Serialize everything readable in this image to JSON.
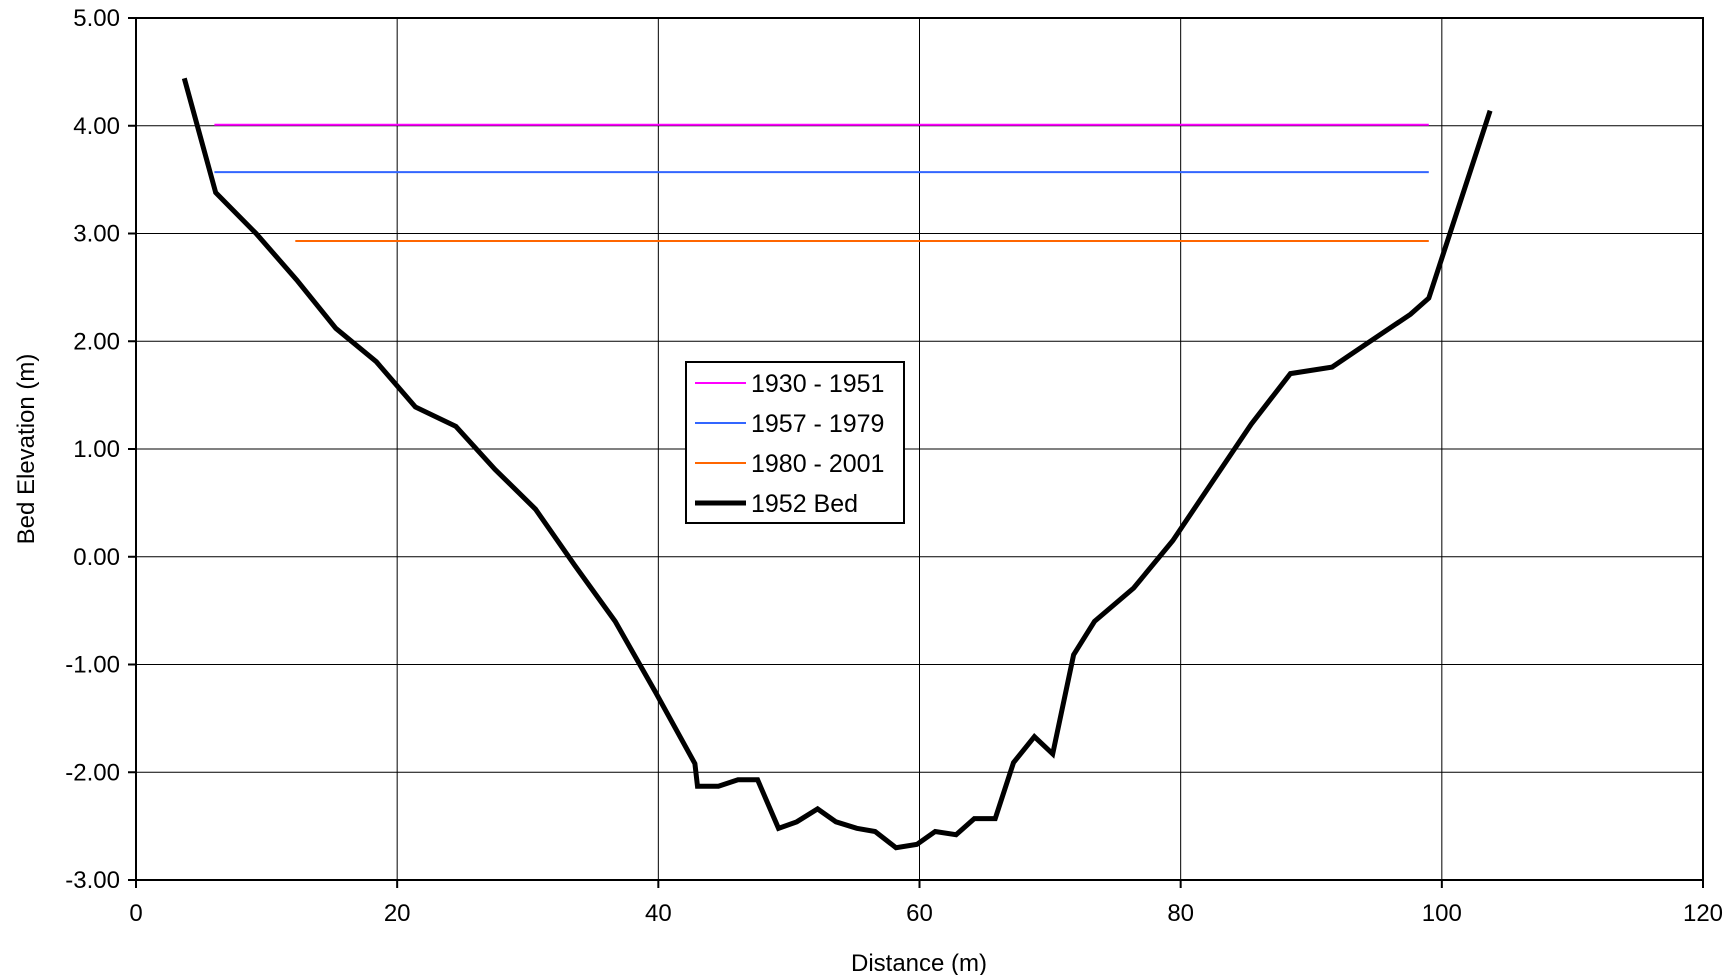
{
  "chart_data": {
    "type": "line",
    "title": "",
    "xlabel": "Distance (m)",
    "ylabel": "Bed Elevation (m)",
    "xlim": [
      0,
      120
    ],
    "ylim": [
      -3,
      5
    ],
    "grid": true,
    "legend_position": "center",
    "x_ticks": [
      "0",
      "20",
      "40",
      "60",
      "80",
      "100",
      "120"
    ],
    "y_ticks": [
      "-3.00",
      "-2.00",
      "-1.00",
      "0.00",
      "1.00",
      "2.00",
      "3.00",
      "4.00",
      "5.00"
    ],
    "series": [
      {
        "name": "1930 - 1951",
        "color": "#ff00ff",
        "width": "thin",
        "x": [
          6.0,
          99.0
        ],
        "y": [
          4.01,
          4.01
        ]
      },
      {
        "name": "1957 - 1979",
        "color": "#3366ff",
        "width": "thin",
        "x": [
          6.0,
          99.0
        ],
        "y": [
          3.57,
          3.57
        ]
      },
      {
        "name": "1980 - 2001",
        "color": "#ff6600",
        "width": "thin",
        "x": [
          12.2,
          99.0
        ],
        "y": [
          2.93,
          2.93
        ]
      },
      {
        "name": "1952 Bed",
        "color": "#000000",
        "width": "thick",
        "x": [
          3.7,
          6.1,
          9.2,
          12.3,
          15.3,
          18.4,
          21.4,
          24.5,
          27.5,
          30.6,
          33.6,
          36.7,
          39.8,
          42.8,
          43.0,
          44.6,
          46.1,
          47.6,
          49.2,
          50.6,
          52.2,
          53.6,
          55.2,
          56.6,
          58.2,
          59.8,
          61.2,
          62.8,
          64.2,
          65.8,
          67.2,
          68.8,
          70.2,
          71.8,
          73.4,
          76.4,
          79.4,
          82.4,
          85.4,
          88.4,
          91.6,
          94.4,
          97.6,
          99.0,
          103.7
        ],
        "y": [
          4.44,
          3.38,
          3.0,
          2.57,
          2.12,
          1.81,
          1.39,
          1.21,
          0.81,
          0.44,
          -0.08,
          -0.6,
          -1.26,
          -1.92,
          -2.13,
          -2.13,
          -2.07,
          -2.07,
          -2.52,
          -2.46,
          -2.34,
          -2.46,
          -2.52,
          -2.55,
          -2.7,
          -2.67,
          -2.55,
          -2.58,
          -2.43,
          -2.43,
          -1.91,
          -1.67,
          -1.83,
          -0.91,
          -0.6,
          -0.29,
          0.15,
          0.69,
          1.23,
          1.7,
          1.76,
          1.99,
          2.25,
          2.4,
          4.14
        ]
      }
    ]
  }
}
